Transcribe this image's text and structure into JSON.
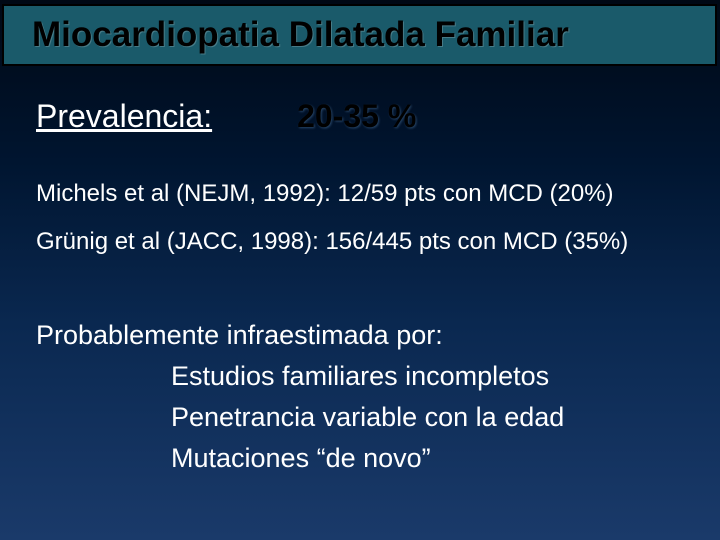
{
  "slide": {
    "title": "Miocardiopatia Dilatada Familiar",
    "title_bar_color": "#1a5a6a",
    "background_gradient_start": "#000814",
    "background_gradient_end": "#1a3a6a",
    "prevalence": {
      "label": "Prevalencia:",
      "value": "20-35 %",
      "label_fontsize": 32,
      "value_fontsize": 32,
      "label_underline": true
    },
    "studies": [
      "Michels et al (NEJM, 1992): 12/59 pts con MCD (20%)",
      "Grünig et al (JACC, 1998): 156/445 pts con MCD (35%)"
    ],
    "underestimation": {
      "intro": "Probablemente infraestimada por:",
      "reasons": [
        "Estudios familiares incompletos",
        "Penetrancia variable con la edad",
        "Mutaciones “de novo”"
      ]
    },
    "text_color": "#ffffff",
    "title_text_color": "#000000",
    "study_fontsize": 24,
    "body_fontsize": 27
  }
}
